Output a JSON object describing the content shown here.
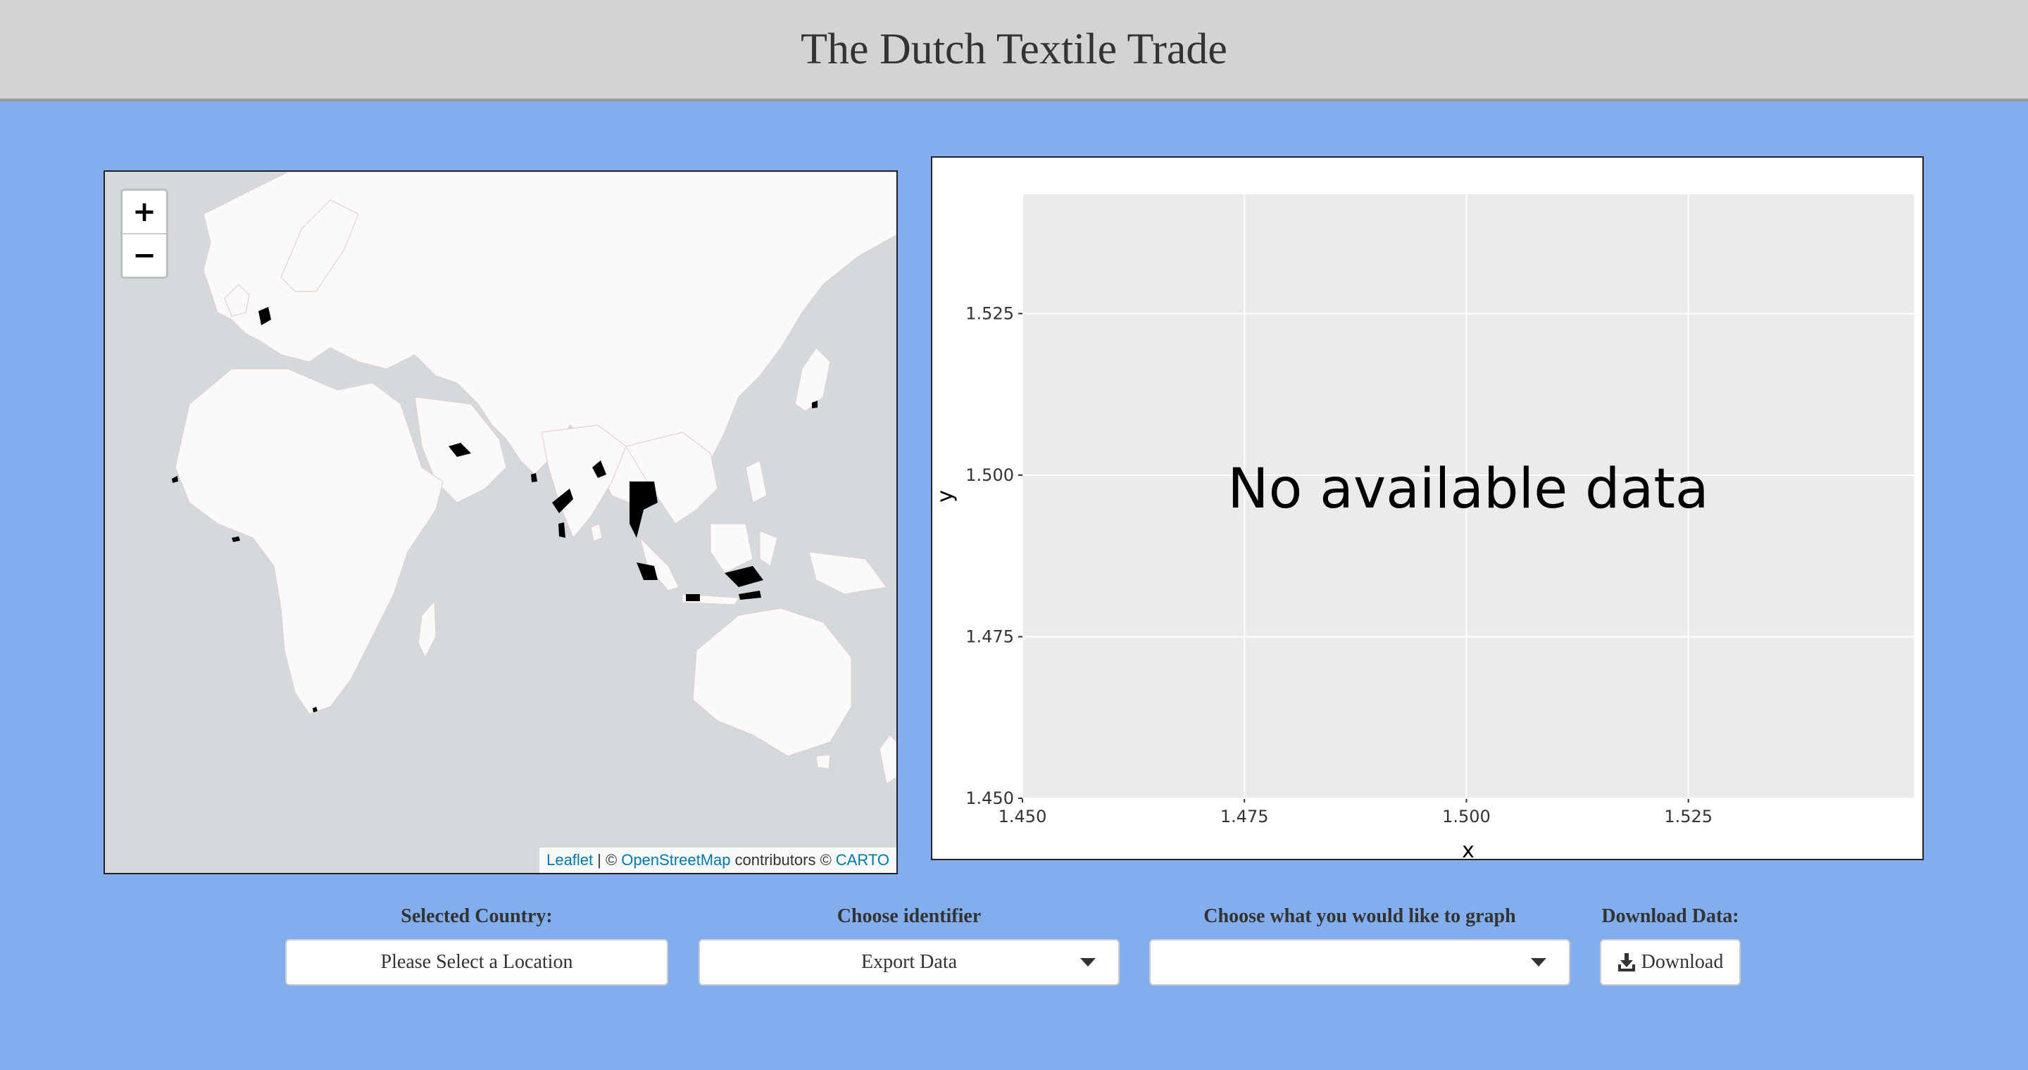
{
  "header": {
    "title": "The Dutch Textile Trade"
  },
  "map": {
    "zoom_in_label": "+",
    "zoom_out_label": "−",
    "attribution": {
      "leaflet": "Leaflet",
      "sep": "| ©",
      "osm": "OpenStreetMap",
      "contributors": "contributors ©",
      "carto": "CARTO"
    },
    "colors": {
      "ocean": "#d4dadc",
      "land": "#fafaf8",
      "highlight": "#000000"
    }
  },
  "plot": {
    "message": "No available data",
    "xlabel": "x",
    "ylabel": "y",
    "background": "#ebebeb"
  },
  "chart_data": {
    "type": "scatter",
    "title": "",
    "xlabel": "x",
    "ylabel": "y",
    "xlim": [
      1.45,
      1.55
    ],
    "ylim": [
      1.45,
      1.55
    ],
    "x_ticks": [
      "1.450",
      "1.475",
      "1.500",
      "1.525"
    ],
    "y_ticks": [
      "1.450",
      "1.475",
      "1.500",
      "1.525"
    ],
    "annotation": "No available data",
    "grid": true,
    "series": []
  },
  "controls": {
    "selected_country": {
      "label": "Selected Country:",
      "value": "Please Select a Location"
    },
    "identifier": {
      "label": "Choose identifier",
      "value": "Export Data"
    },
    "graph": {
      "label": "Choose what you would like to graph",
      "value": ""
    },
    "download": {
      "label": "Download Data:",
      "button": "Download"
    }
  }
}
